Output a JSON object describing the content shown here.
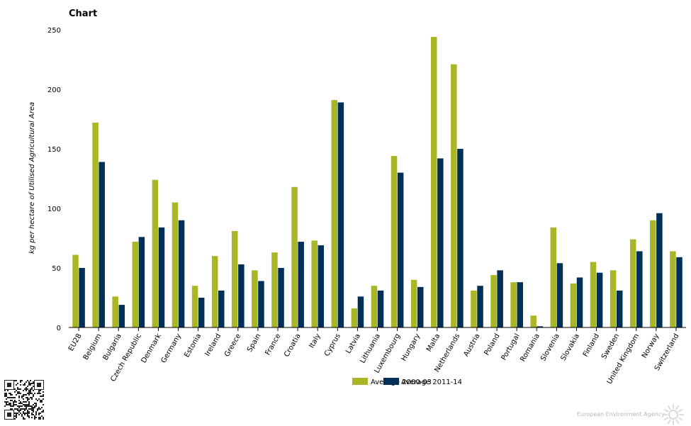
{
  "header": {
    "title": "Chart"
  },
  "footer": {
    "credit": "European Environment Agency"
  },
  "chart_data": {
    "type": "bar",
    "title": "",
    "xlabel": "",
    "ylabel": "kg per hectare of Utilised Agricultural Area",
    "ylim": [
      0,
      250
    ],
    "yticks": [
      0,
      50,
      100,
      150,
      200,
      250
    ],
    "grid": false,
    "legend_position": "bottom",
    "categories": [
      "EU28",
      "Belgium",
      "Bulgaria",
      "Czech Republic",
      "Denmark",
      "Germany",
      "Estonia",
      "Ireland",
      "Greece",
      "Spain",
      "France",
      "Croatia",
      "Italy",
      "Cyprus",
      "Latvia",
      "Lithuania",
      "Luxembourg",
      "Hungary",
      "Malta",
      "Netherlands",
      "Austria",
      "Poland",
      "Portugal",
      "Romania",
      "Slovenia",
      "Slovakia",
      "Finland",
      "Sweden",
      "United Kingdom",
      "Norway",
      "Switzerland"
    ],
    "series": [
      {
        "name": "Average 2000-03",
        "color": "#a9b626",
        "values": [
          61,
          172,
          26,
          72,
          124,
          105,
          35,
          60,
          81,
          48,
          63,
          118,
          73,
          191,
          16,
          35,
          144,
          40,
          244,
          221,
          31,
          44,
          38,
          10,
          84,
          37,
          55,
          48,
          74,
          90,
          64
        ]
      },
      {
        "name": "Average 2011-14",
        "color": "#003058",
        "values": [
          50,
          139,
          19,
          76,
          84,
          90,
          25,
          31,
          53,
          39,
          50,
          72,
          69,
          189,
          26,
          31,
          130,
          34,
          142,
          150,
          35,
          48,
          38,
          1,
          54,
          42,
          46,
          31,
          64,
          96,
          59
        ]
      }
    ]
  }
}
